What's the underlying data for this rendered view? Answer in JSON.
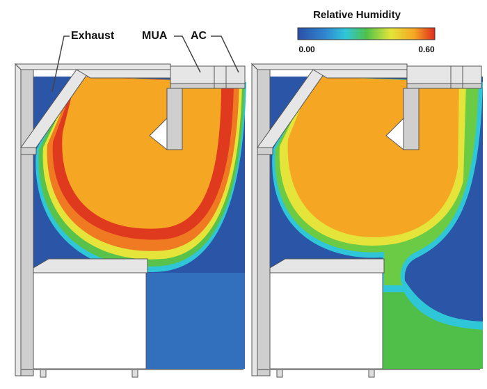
{
  "annotations": [
    "Exhaust",
    "MUA",
    "AC"
  ],
  "colorbar": {
    "title": "Relative Humidity",
    "labels": [
      "0.00",
      "0.60"
    ]
  }
}
